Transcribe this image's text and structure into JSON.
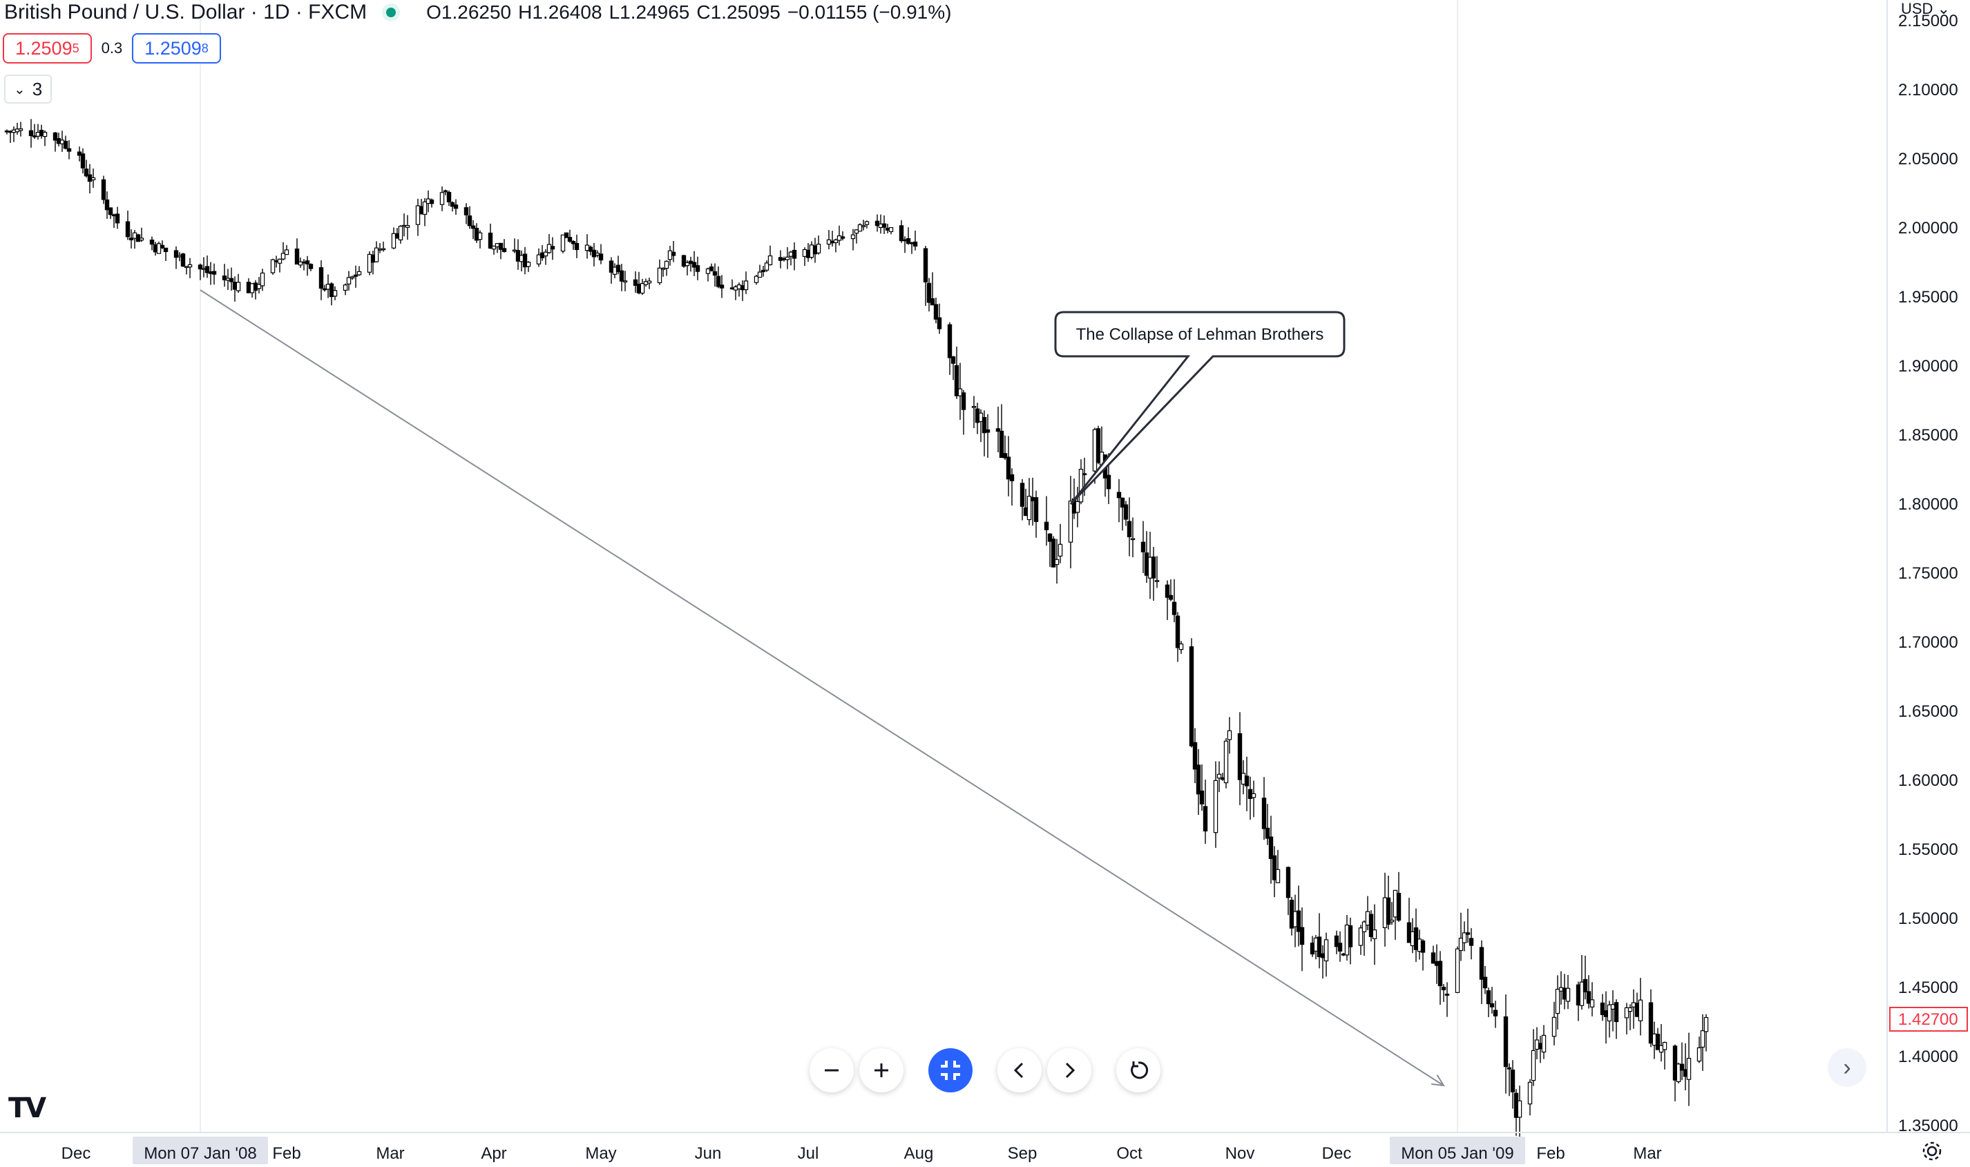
{
  "header": {
    "symbol_title": "British Pound / U.S. Dollar · 1D · FXCM",
    "open": "O1.26250",
    "high": "H1.26408",
    "low": "L1.24965",
    "close": "C1.25095",
    "change": "−0.01155 (−0.91%)",
    "sell_price": "1.2509",
    "sell_price_sup": "5",
    "spread": "0.3",
    "buy_price": "1.2509",
    "buy_price_sup": "8",
    "indicators_count": "3",
    "market_status_color": "#089981"
  },
  "price_axis": {
    "currency_label": "USD",
    "current_price_label": "1.42700",
    "current_price_color": "#f23645"
  },
  "toolbar": {
    "zoom_out_icon": "minus-icon",
    "zoom_in_icon": "plus-icon",
    "reset_scale_icon": "fit-icon",
    "scroll_left_icon": "chevron-left-icon",
    "scroll_right_icon": "chevron-right-icon",
    "reset_icon": "rotate-icon"
  },
  "chart_data": {
    "type": "candlestick",
    "title": "",
    "xlabel": "",
    "ylabel": "",
    "ylim": [
      1.345,
      2.155
    ],
    "y_ticks": [
      "2.15000",
      "2.10000",
      "2.05000",
      "2.00000",
      "1.95000",
      "1.90000",
      "1.85000",
      "1.80000",
      "1.75000",
      "1.70000",
      "1.65000",
      "1.60000",
      "1.55000",
      "1.50000",
      "1.45000",
      "1.40000",
      "1.35000"
    ],
    "x_ticks": [
      {
        "date": "2007-12-02",
        "label": "Dec"
      },
      {
        "date": "2008-02-01",
        "label": "Feb"
      },
      {
        "date": "2008-03-02",
        "label": "Mar"
      },
      {
        "date": "2008-04-01",
        "label": "Apr"
      },
      {
        "date": "2008-05-02",
        "label": "May"
      },
      {
        "date": "2008-06-02",
        "label": "Jun"
      },
      {
        "date": "2008-07-01",
        "label": "Jul"
      },
      {
        "date": "2008-08-02",
        "label": "Aug"
      },
      {
        "date": "2008-09-01",
        "label": "Sep"
      },
      {
        "date": "2008-10-02",
        "label": "Oct"
      },
      {
        "date": "2008-11-03",
        "label": "Nov"
      },
      {
        "date": "2008-12-01",
        "label": "Dec"
      },
      {
        "date": "2009-02-01",
        "label": "Feb"
      },
      {
        "date": "2009-03-01",
        "label": "Mar"
      }
    ],
    "crosshair_labels": [
      {
        "date": "2008-01-07",
        "label": "Mon 07 Jan '08"
      },
      {
        "date": "2009-01-05",
        "label": "Mon 05 Jan '09"
      }
    ],
    "anchor_closes": [
      {
        "date": "2007-11-12",
        "close": 2.07
      },
      {
        "date": "2007-11-22",
        "close": 2.07
      },
      {
        "date": "2007-11-30",
        "close": 2.06
      },
      {
        "date": "2007-12-15",
        "close": 2.0
      },
      {
        "date": "2008-01-07",
        "close": 1.97
      },
      {
        "date": "2008-01-22",
        "close": 1.955
      },
      {
        "date": "2008-02-01",
        "close": 1.985
      },
      {
        "date": "2008-02-15",
        "close": 1.95
      },
      {
        "date": "2008-02-28",
        "close": 1.985
      },
      {
        "date": "2008-03-17",
        "close": 2.03
      },
      {
        "date": "2008-03-27",
        "close": 1.995
      },
      {
        "date": "2008-04-10",
        "close": 1.975
      },
      {
        "date": "2008-04-22",
        "close": 1.995
      },
      {
        "date": "2008-05-12",
        "close": 1.955
      },
      {
        "date": "2008-05-22",
        "close": 1.98
      },
      {
        "date": "2008-06-10",
        "close": 1.955
      },
      {
        "date": "2008-06-20",
        "close": 1.975
      },
      {
        "date": "2008-07-10",
        "close": 1.99
      },
      {
        "date": "2008-07-22",
        "close": 2.005
      },
      {
        "date": "2008-08-01",
        "close": 1.985
      },
      {
        "date": "2008-08-15",
        "close": 1.87
      },
      {
        "date": "2008-08-25",
        "close": 1.845
      },
      {
        "date": "2008-09-10",
        "close": 1.76
      },
      {
        "date": "2008-09-22",
        "close": 1.845
      },
      {
        "date": "2008-10-01",
        "close": 1.78
      },
      {
        "date": "2008-10-15",
        "close": 1.725
      },
      {
        "date": "2008-10-24",
        "close": 1.56
      },
      {
        "date": "2008-10-31",
        "close": 1.63
      },
      {
        "date": "2008-11-21",
        "close": 1.48
      },
      {
        "date": "2008-12-05",
        "close": 1.485
      },
      {
        "date": "2008-12-18",
        "close": 1.51
      },
      {
        "date": "2009-01-01",
        "close": 1.45
      },
      {
        "date": "2009-01-09",
        "close": 1.49
      },
      {
        "date": "2009-01-22",
        "close": 1.365
      },
      {
        "date": "2009-02-05",
        "close": 1.45
      },
      {
        "date": "2009-02-13",
        "close": 1.44
      },
      {
        "date": "2009-02-27",
        "close": 1.43
      },
      {
        "date": "2009-03-11",
        "close": 1.38
      },
      {
        "date": "2009-03-18",
        "close": 1.42
      }
    ],
    "trend_line": {
      "start": {
        "date": "2008-01-07",
        "value": 1.955
      },
      "end": {
        "date": "2009-01-01",
        "value": 1.379
      }
    },
    "annotation": {
      "text": "The Collapse of Lehman Brothers",
      "date": "2008-09-15",
      "value": 1.8
    }
  }
}
